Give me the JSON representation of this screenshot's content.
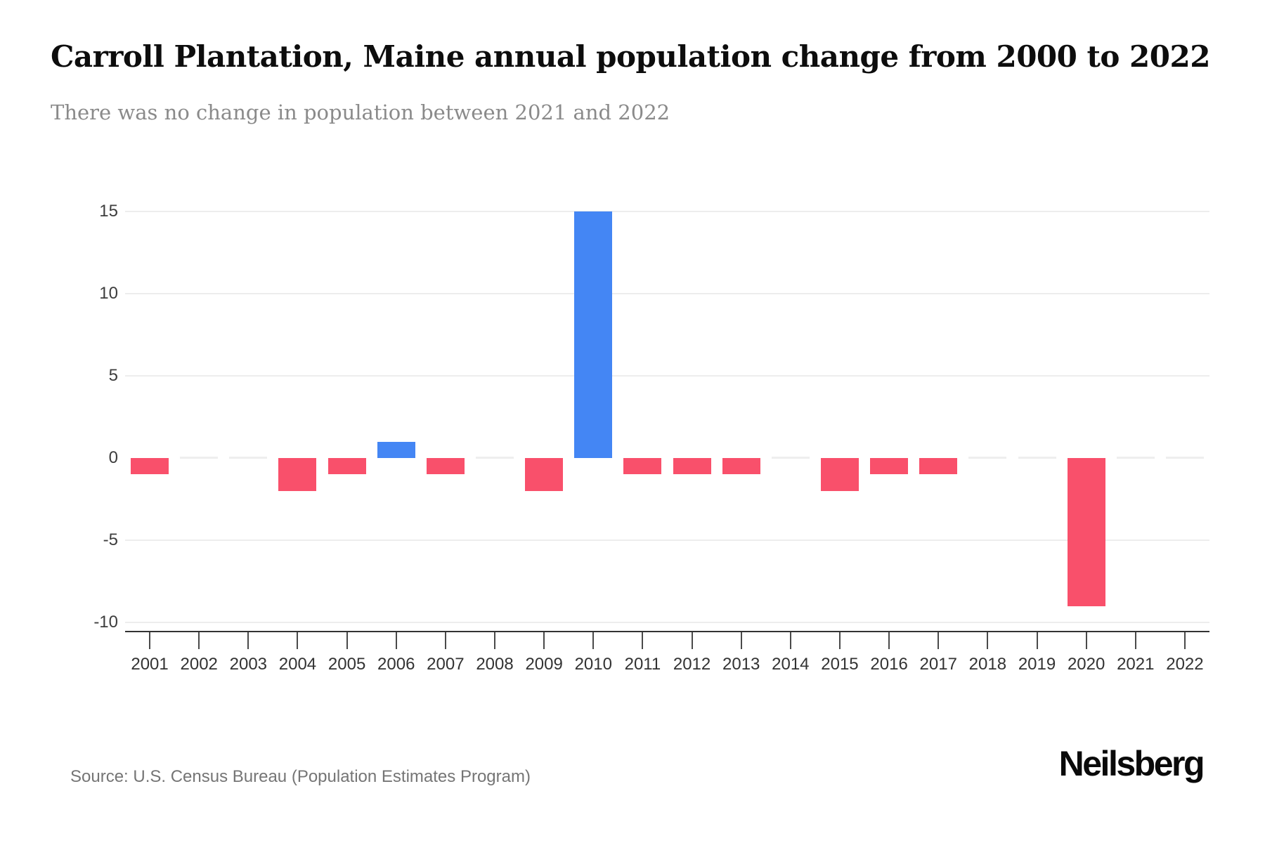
{
  "chart_data": {
    "type": "bar",
    "title": "Carroll Plantation, Maine annual population change from 2000 to 2022",
    "subtitle": "There was no change in population between 2021 and 2022",
    "categories": [
      "2001",
      "2002",
      "2003",
      "2004",
      "2005",
      "2006",
      "2007",
      "2008",
      "2009",
      "2010",
      "2011",
      "2012",
      "2013",
      "2014",
      "2015",
      "2016",
      "2017",
      "2018",
      "2019",
      "2020",
      "2021",
      "2022"
    ],
    "values": [
      -1,
      0,
      0,
      -2,
      -1,
      1,
      -1,
      0,
      -2,
      15,
      -1,
      -1,
      -1,
      0,
      -2,
      -1,
      -1,
      0,
      0,
      -9,
      0,
      0
    ],
    "xlabel": "",
    "ylabel": "",
    "ylim": [
      -10.5,
      16
    ],
    "yticks": [
      15,
      10,
      5,
      0,
      -5,
      -10
    ],
    "grid": true,
    "legend": "none",
    "colors": {
      "positive": "#4486f4",
      "negative": "#f9506b",
      "gridline": "#ededed",
      "zero_marker": "#eeeeee",
      "axis_line": "#333333",
      "axis_text": "#3d3d3d",
      "title_text": "#0d0d0d",
      "subtitle_text": "#8a8a8a"
    },
    "source": "Source: U.S. Census Bureau (Population Estimates Program)",
    "brand": "Neilsberg"
  }
}
